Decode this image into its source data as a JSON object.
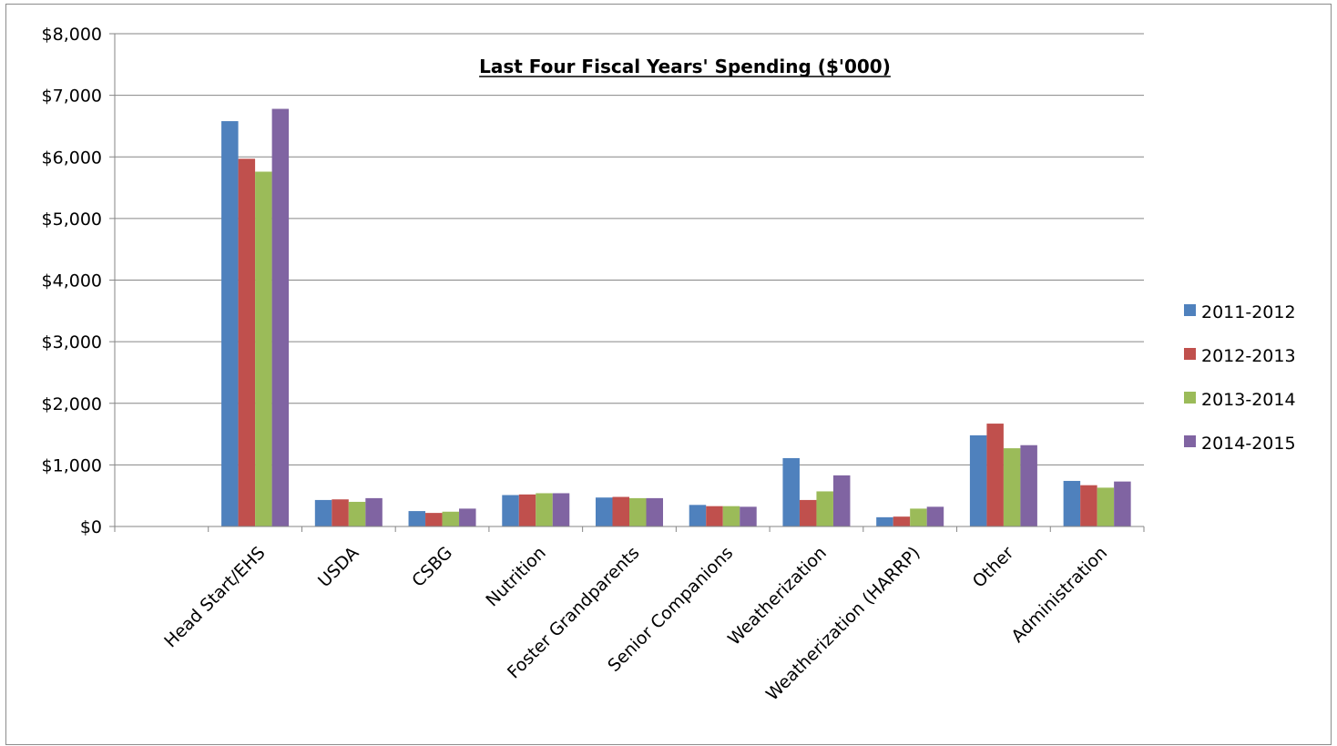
{
  "chart_data": {
    "type": "bar",
    "title": "Last Four Fiscal Years' Spending ($'000)",
    "xlabel": "",
    "ylabel": "",
    "ylim": [
      0,
      8000
    ],
    "yticks": [
      "$0",
      "$1,000",
      "$2,000",
      "$3,000",
      "$4,000",
      "$5,000",
      "$6,000",
      "$7,000",
      "$8,000"
    ],
    "grid": true,
    "legend_position": "right",
    "categories": [
      "",
      "Head Start/EHS",
      "USDA",
      "CSBG",
      "Nutrition",
      "Foster Grandparents",
      "Senior Companions",
      "Weatherization",
      "Weatherization (HARRP)",
      "Other",
      "Administration"
    ],
    "series": [
      {
        "name": "2011-2012",
        "color": "#4f81bd",
        "values": [
          null,
          6580,
          430,
          250,
          510,
          470,
          350,
          1110,
          150,
          1480,
          740
        ]
      },
      {
        "name": "2012-2013",
        "color": "#c0504d",
        "values": [
          null,
          5970,
          440,
          220,
          520,
          480,
          330,
          430,
          160,
          1670,
          670
        ]
      },
      {
        "name": "2013-2014",
        "color": "#9bbb59",
        "values": [
          null,
          5760,
          400,
          240,
          540,
          460,
          330,
          570,
          290,
          1270,
          630
        ]
      },
      {
        "name": "2014-2015",
        "color": "#8064a2",
        "values": [
          null,
          6780,
          460,
          290,
          540,
          460,
          320,
          830,
          320,
          1320,
          730
        ]
      }
    ]
  }
}
